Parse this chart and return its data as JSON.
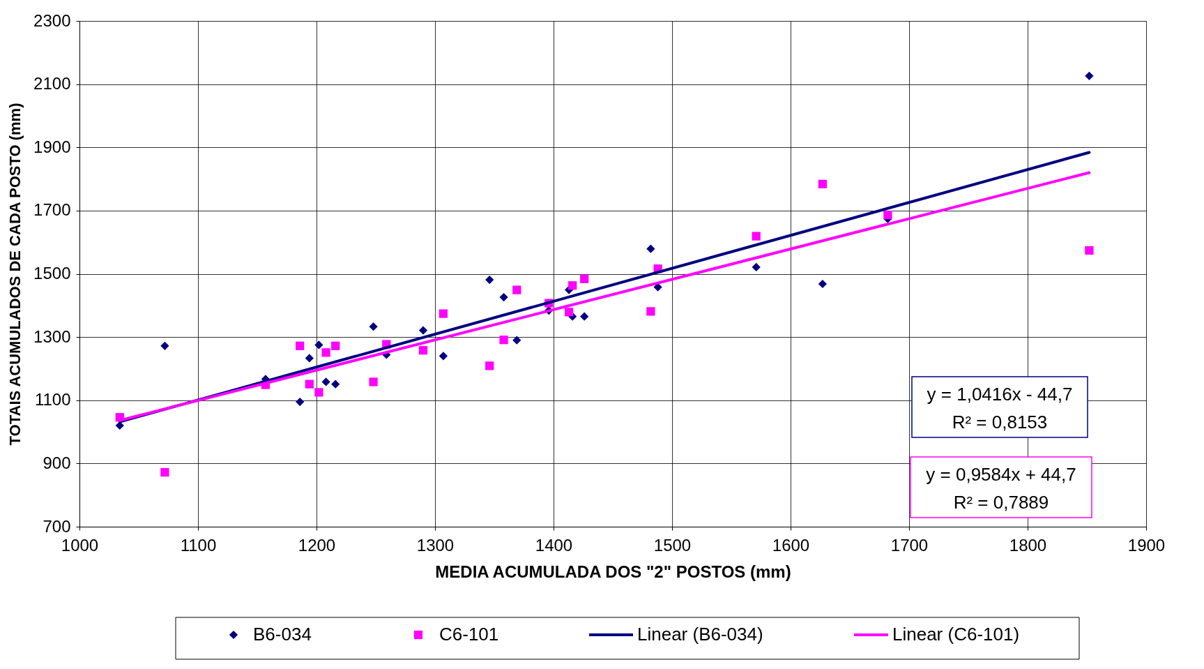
{
  "chart_data": {
    "type": "scatter",
    "xlabel": "MEDIA ACUMULADA DOS \"2\" POSTOS (mm)",
    "ylabel": "TOTAIS ACUMULADOS DE CADA POSTO (mm)",
    "xlim": [
      1000,
      1900
    ],
    "xticks": [
      1000,
      1100,
      1200,
      1300,
      1400,
      1500,
      1600,
      1700,
      1800,
      1900
    ],
    "ylim": [
      700,
      2300
    ],
    "yticks": [
      700,
      900,
      1100,
      1300,
      1500,
      1700,
      1900,
      2100,
      2300
    ],
    "grid": true,
    "legend": "bottom",
    "series": [
      {
        "name": "B6-034",
        "marker": "diamond",
        "color": "#000080",
        "x": [
          1034,
          1072,
          1157,
          1186,
          1194,
          1202,
          1208,
          1216,
          1248,
          1259,
          1290,
          1307,
          1346,
          1358,
          1369,
          1396,
          1413,
          1416,
          1426,
          1482,
          1488,
          1571,
          1627,
          1682,
          1852
        ],
        "values": [
          1020,
          1272,
          1167,
          1095,
          1233,
          1275,
          1158,
          1151,
          1333,
          1244,
          1321,
          1240,
          1481,
          1426,
          1290,
          1384,
          1449,
          1365,
          1365,
          1579,
          1458,
          1521,
          1468,
          1674,
          2126
        ]
      },
      {
        "name": "C6-101",
        "marker": "square",
        "color": "#ff00ff",
        "x": [
          1034,
          1072,
          1157,
          1186,
          1194,
          1202,
          1208,
          1216,
          1248,
          1259,
          1290,
          1307,
          1346,
          1358,
          1369,
          1396,
          1413,
          1416,
          1426,
          1482,
          1488,
          1571,
          1627,
          1682,
          1852
        ],
        "values": [
          1046,
          872,
          1149,
          1272,
          1151,
          1125,
          1251,
          1272,
          1158,
          1277,
          1258,
          1374,
          1209,
          1291,
          1449,
          1407,
          1379,
          1463,
          1484,
          1381,
          1516,
          1619,
          1784,
          1686,
          1574
        ]
      },
      {
        "name": "Linear (B6-034)",
        "type": "line",
        "color": "#000080",
        "x": [
          1034,
          1852
        ],
        "values": [
          1032,
          1884
        ]
      },
      {
        "name": "Linear (C6-101)",
        "type": "line",
        "color": "#ff00ff",
        "x": [
          1034,
          1852
        ],
        "values": [
          1036,
          1820
        ]
      }
    ],
    "annotations": [
      "y = 1,0416x - 44,7",
      "R² = 0,8153",
      "y = 0,9584x + 44,7",
      "R² = 0,7889"
    ]
  }
}
